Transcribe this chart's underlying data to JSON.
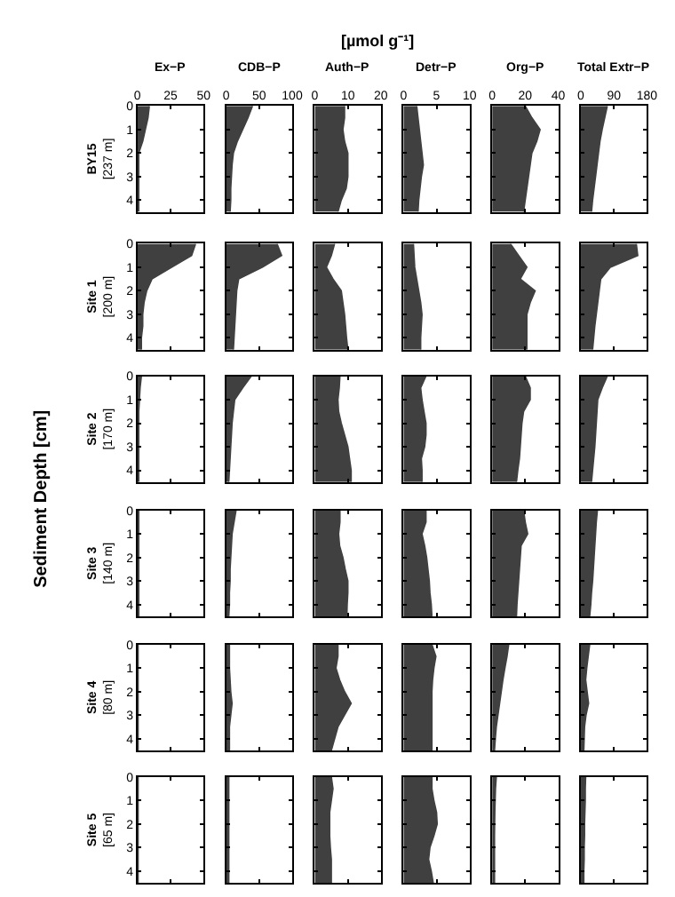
{
  "chart_data": [
    {
      "type": "area",
      "orientation": "horizontal",
      "title": "Ex−P",
      "ylabel": "BY15\n[237 m]",
      "annotations": [
        "[µmol g⁻¹]",
        "Sediment Depth [cm]"
      ],
      "x": [
        0,
        0.5,
        1,
        1.5,
        2,
        2.5,
        3,
        3.5,
        4,
        4.5
      ],
      "values": [
        9,
        8,
        6,
        4,
        1,
        1,
        1,
        1,
        1,
        1
      ],
      "color": "#404040",
      "xlim": [
        0,
        50
      ],
      "xticks": [
        0,
        25,
        50
      ],
      "ylim": [
        4.5,
        0
      ],
      "yticks": [
        0,
        1,
        2,
        3,
        4
      ]
    },
    {
      "type": "area",
      "orientation": "horizontal",
      "title": "CDB−P",
      "tick_labels": "x",
      "x": [
        0,
        0.5,
        1,
        1.5,
        2,
        2.5,
        3,
        3.5,
        4,
        4.5
      ],
      "values": [
        40,
        33,
        25,
        17,
        11,
        9,
        8,
        7,
        7,
        6
      ],
      "color": "#404040",
      "xlim": [
        0,
        100
      ],
      "xticks": [
        0,
        50,
        100
      ],
      "ylim": [
        4.5,
        0
      ],
      "yticks": [
        0,
        1,
        2,
        3,
        4
      ]
    },
    {
      "type": "area",
      "orientation": "horizontal",
      "title": "Auth−P",
      "tick_labels": "x",
      "x": [
        0,
        0.5,
        1,
        1.5,
        2,
        2.5,
        3,
        3.5,
        4,
        4.5
      ],
      "values": [
        9,
        9,
        8.5,
        9,
        10,
        10,
        10,
        9.5,
        8,
        7
      ],
      "color": "#404040",
      "xlim": [
        0,
        20
      ],
      "xticks": [
        0,
        10,
        20
      ],
      "ylim": [
        4.5,
        0
      ],
      "yticks": [
        0,
        1,
        2,
        3,
        4
      ]
    },
    {
      "type": "area",
      "orientation": "horizontal",
      "title": "Detr−P",
      "tick_labels": "x",
      "x": [
        0,
        0.5,
        1,
        1.5,
        2,
        2.5,
        3,
        3.5,
        4,
        4.5
      ],
      "values": [
        2,
        2.2,
        2.4,
        2.6,
        2.8,
        3,
        2.7,
        2.5,
        2.3,
        2.2
      ],
      "color": "#404040",
      "xlim": [
        0,
        10
      ],
      "xticks": [
        0,
        5,
        10
      ],
      "ylim": [
        4.5,
        0
      ],
      "yticks": [
        0,
        1,
        2,
        3,
        4
      ]
    },
    {
      "type": "area",
      "orientation": "horizontal",
      "title": "Org−P",
      "tick_labels": "x",
      "x": [
        0,
        0.5,
        1,
        1.5,
        2,
        2.5,
        3,
        3.5,
        4,
        4.5
      ],
      "values": [
        20,
        24,
        29,
        27,
        24,
        23,
        22,
        21,
        20,
        19
      ],
      "color": "#404040",
      "xlim": [
        0,
        40
      ],
      "xticks": [
        0,
        20,
        40
      ],
      "ylim": [
        4.5,
        0
      ],
      "yticks": [
        0,
        1,
        2,
        3,
        4
      ]
    },
    {
      "type": "area",
      "orientation": "horizontal",
      "title": "Total Extr−P",
      "tick_labels": "x",
      "x": [
        0,
        0.5,
        1,
        1.5,
        2,
        2.5,
        3,
        3.5,
        4,
        4.5
      ],
      "values": [
        72,
        65,
        58,
        52,
        48,
        44,
        40,
        36,
        32,
        29
      ],
      "color": "#404040",
      "xlim": [
        0,
        180
      ],
      "xticks": [
        0,
        90,
        180
      ],
      "ylim": [
        4.5,
        0
      ],
      "yticks": [
        0,
        1,
        2,
        3,
        4
      ]
    },
    {
      "type": "area",
      "orientation": "horizontal",
      "ylabel": "Site 1\n[200 m]",
      "tick_labels": "y",
      "x": [
        0,
        0.5,
        1,
        1.5,
        2,
        2.5,
        3,
        3.5,
        4,
        4.5
      ],
      "values": [
        44,
        41,
        26,
        11,
        7,
        5,
        4,
        4,
        3,
        3
      ],
      "color": "#404040",
      "xlim": [
        0,
        50
      ],
      "xticks": [
        0,
        25,
        50
      ],
      "ylim": [
        4.5,
        0
      ],
      "yticks": [
        0,
        1,
        2,
        3,
        4
      ]
    },
    {
      "type": "area",
      "orientation": "horizontal",
      "tick_labels": false,
      "x": [
        0,
        0.5,
        1,
        1.5,
        2,
        2.5,
        3,
        3.5,
        4,
        4.5
      ],
      "values": [
        77,
        84,
        55,
        19,
        16,
        15,
        14,
        13,
        12,
        11
      ],
      "color": "#404040",
      "xlim": [
        0,
        100
      ],
      "xticks": [
        0,
        50,
        100
      ],
      "ylim": [
        4.5,
        0
      ],
      "yticks": [
        0,
        1,
        2,
        3,
        4
      ]
    },
    {
      "type": "area",
      "orientation": "horizontal",
      "tick_labels": false,
      "x": [
        0,
        0.5,
        1,
        1.5,
        2,
        2.5,
        3,
        3.5,
        4,
        4.5
      ],
      "values": [
        6,
        5,
        3.5,
        5.5,
        8,
        8.5,
        9,
        9.3,
        9.6,
        10
      ],
      "color": "#404040",
      "xlim": [
        0,
        20
      ],
      "xticks": [
        0,
        10,
        20
      ],
      "ylim": [
        4.5,
        0
      ],
      "yticks": [
        0,
        1,
        2,
        3,
        4
      ]
    },
    {
      "type": "area",
      "orientation": "horizontal",
      "tick_labels": false,
      "x": [
        0,
        0.5,
        1,
        1.5,
        2,
        2.5,
        3,
        3.5,
        4,
        4.5
      ],
      "values": [
        1.5,
        1.6,
        1.7,
        2,
        2.3,
        2.6,
        2.8,
        2.7,
        2.6,
        2.6
      ],
      "color": "#404040",
      "xlim": [
        0,
        10
      ],
      "xticks": [
        0,
        5,
        10
      ],
      "ylim": [
        4.5,
        0
      ],
      "yticks": [
        0,
        1,
        2,
        3,
        4
      ]
    },
    {
      "type": "area",
      "orientation": "horizontal",
      "tick_labels": false,
      "x": [
        0,
        0.5,
        1,
        1.5,
        2,
        2.5,
        3,
        3.5,
        4,
        4.5
      ],
      "values": [
        11,
        16,
        21,
        17,
        26,
        23,
        21,
        21,
        21,
        21
      ],
      "color": "#404040",
      "xlim": [
        0,
        40
      ],
      "xticks": [
        0,
        20,
        40
      ],
      "ylim": [
        4.5,
        0
      ],
      "yticks": [
        0,
        1,
        2,
        3,
        4
      ]
    },
    {
      "type": "area",
      "orientation": "horizontal",
      "tick_labels": false,
      "x": [
        0,
        0.5,
        1,
        1.5,
        2,
        2.5,
        3,
        3.5,
        4,
        4.5
      ],
      "values": [
        151,
        155,
        80,
        54,
        50,
        46,
        42,
        38,
        35,
        32
      ],
      "color": "#404040",
      "xlim": [
        0,
        180
      ],
      "xticks": [
        0,
        90,
        180
      ],
      "ylim": [
        4.5,
        0
      ],
      "yticks": [
        0,
        1,
        2,
        3,
        4
      ]
    },
    {
      "type": "area",
      "orientation": "horizontal",
      "ylabel": "Site 2\n[170 m]",
      "tick_labels": "y",
      "x": [
        0,
        0.5,
        1,
        1.5,
        2,
        2.5,
        3,
        3.5,
        4,
        4.5
      ],
      "values": [
        3,
        2,
        1.5,
        1,
        1,
        1,
        1,
        1,
        1,
        1
      ],
      "color": "#404040",
      "xlim": [
        0,
        50
      ],
      "xticks": [
        0,
        25,
        50
      ],
      "ylim": [
        4.5,
        0
      ],
      "yticks": [
        0,
        1,
        2,
        3,
        4
      ]
    },
    {
      "type": "area",
      "orientation": "horizontal",
      "tick_labels": false,
      "x": [
        0,
        0.5,
        1,
        1.5,
        2,
        2.5,
        3,
        3.5,
        4,
        4.5
      ],
      "values": [
        38,
        25,
        13,
        11,
        9,
        8,
        7,
        6,
        5,
        4
      ],
      "color": "#404040",
      "xlim": [
        0,
        100
      ],
      "xticks": [
        0,
        50,
        100
      ],
      "ylim": [
        4.5,
        0
      ],
      "yticks": [
        0,
        1,
        2,
        3,
        4
      ]
    },
    {
      "type": "area",
      "orientation": "horizontal",
      "tick_labels": false,
      "x": [
        0,
        0.5,
        1,
        1.5,
        2,
        2.5,
        3,
        3.5,
        4,
        4.5
      ],
      "values": [
        7.6,
        7.4,
        7,
        7.2,
        8,
        9,
        10,
        10.5,
        11,
        11
      ],
      "color": "#404040",
      "xlim": [
        0,
        20
      ],
      "xticks": [
        0,
        10,
        20
      ],
      "ylim": [
        4.5,
        0
      ],
      "yticks": [
        0,
        1,
        2,
        3,
        4
      ]
    },
    {
      "type": "area",
      "orientation": "horizontal",
      "tick_labels": false,
      "x": [
        0,
        0.5,
        1,
        1.5,
        2,
        2.5,
        3,
        3.5,
        4,
        4.5
      ],
      "values": [
        3.4,
        2.6,
        2.8,
        3.1,
        3.4,
        3.4,
        3.2,
        2.7,
        2.8,
        2.8
      ],
      "color": "#404040",
      "xlim": [
        0,
        10
      ],
      "xticks": [
        0,
        5,
        10
      ],
      "ylim": [
        4.5,
        0
      ],
      "yticks": [
        0,
        1,
        2,
        3,
        4
      ]
    },
    {
      "type": "area",
      "orientation": "horizontal",
      "tick_labels": false,
      "x": [
        0,
        0.5,
        1,
        1.5,
        2,
        2.5,
        3,
        3.5,
        4,
        4.5
      ],
      "values": [
        20,
        23,
        23,
        19,
        18,
        17.5,
        17,
        16.5,
        15.5,
        14.7
      ],
      "color": "#404040",
      "xlim": [
        0,
        40
      ],
      "xticks": [
        0,
        20,
        40
      ],
      "ylim": [
        4.5,
        0
      ],
      "yticks": [
        0,
        1,
        2,
        3,
        4
      ]
    },
    {
      "type": "area",
      "orientation": "horizontal",
      "tick_labels": false,
      "x": [
        0,
        0.5,
        1,
        1.5,
        2,
        2.5,
        3,
        3.5,
        4,
        4.5
      ],
      "values": [
        72,
        58,
        46,
        44,
        42,
        40,
        38,
        35,
        32,
        29
      ],
      "color": "#404040",
      "xlim": [
        0,
        180
      ],
      "xticks": [
        0,
        90,
        180
      ],
      "ylim": [
        4.5,
        0
      ],
      "yticks": [
        0,
        1,
        2,
        3,
        4
      ]
    },
    {
      "type": "area",
      "orientation": "horizontal",
      "ylabel": "Site 3\n[140 m]",
      "tick_labels": "y",
      "x": [
        0,
        0.5,
        1,
        1.5,
        2,
        2.5,
        3,
        3.5,
        4,
        4.5
      ],
      "values": [
        1,
        1,
        1,
        1,
        1,
        1,
        1,
        1,
        1,
        1
      ],
      "color": "#404040",
      "xlim": [
        0,
        50
      ],
      "xticks": [
        0,
        25,
        50
      ],
      "ylim": [
        4.5,
        0
      ],
      "yticks": [
        0,
        1,
        2,
        3,
        4
      ]
    },
    {
      "type": "area",
      "orientation": "horizontal",
      "tick_labels": false,
      "x": [
        0,
        0.5,
        1,
        1.5,
        2,
        2.5,
        3,
        3.5,
        4,
        4.5
      ],
      "values": [
        15,
        12,
        9,
        8,
        7,
        6,
        6,
        5,
        5,
        4
      ],
      "color": "#404040",
      "xlim": [
        0,
        100
      ],
      "xticks": [
        0,
        50,
        100
      ],
      "ylim": [
        4.5,
        0
      ],
      "yticks": [
        0,
        1,
        2,
        3,
        4
      ]
    },
    {
      "type": "area",
      "orientation": "horizontal",
      "tick_labels": false,
      "x": [
        0,
        0.5,
        1,
        1.5,
        2,
        2.5,
        3,
        3.5,
        4,
        4.5
      ],
      "values": [
        7.6,
        7.6,
        7.2,
        7.5,
        8.5,
        9.2,
        10,
        10,
        9.8,
        9.7
      ],
      "color": "#404040",
      "xlim": [
        0,
        20
      ],
      "xticks": [
        0,
        10,
        20
      ],
      "ylim": [
        4.5,
        0
      ],
      "yticks": [
        0,
        1,
        2,
        3,
        4
      ]
    },
    {
      "type": "area",
      "orientation": "horizontal",
      "tick_labels": false,
      "x": [
        0,
        0.5,
        1,
        1.5,
        2,
        2.5,
        3,
        3.5,
        4,
        4.5
      ],
      "values": [
        3.4,
        3.4,
        2.8,
        3.2,
        3.5,
        3.7,
        3.9,
        4,
        4.2,
        4.3
      ],
      "color": "#404040",
      "xlim": [
        0,
        10
      ],
      "xticks": [
        0,
        5,
        10
      ],
      "ylim": [
        4.5,
        0
      ],
      "yticks": [
        0,
        1,
        2,
        3,
        4
      ]
    },
    {
      "type": "area",
      "orientation": "horizontal",
      "tick_labels": false,
      "x": [
        0,
        0.5,
        1,
        1.5,
        2,
        2.5,
        3,
        3.5,
        4,
        4.5
      ],
      "values": [
        19,
        20,
        21.5,
        17.5,
        17,
        16.5,
        16,
        15.5,
        15,
        14.7
      ],
      "color": "#404040",
      "xlim": [
        0,
        40
      ],
      "xticks": [
        0,
        20,
        40
      ],
      "ylim": [
        4.5,
        0
      ],
      "yticks": [
        0,
        1,
        2,
        3,
        4
      ]
    },
    {
      "type": "area",
      "orientation": "horizontal",
      "tick_labels": false,
      "x": [
        0,
        0.5,
        1,
        1.5,
        2,
        2.5,
        3,
        3.5,
        4,
        4.5
      ],
      "values": [
        45,
        42,
        40,
        38,
        36,
        34,
        32,
        29,
        27,
        24
      ],
      "color": "#404040",
      "xlim": [
        0,
        180
      ],
      "xticks": [
        0,
        90,
        180
      ],
      "ylim": [
        4.5,
        0
      ],
      "yticks": [
        0,
        1,
        2,
        3,
        4
      ]
    },
    {
      "type": "area",
      "orientation": "horizontal",
      "ylabel": "Site 4\n[80 m]",
      "tick_labels": "y",
      "x": [
        0,
        0.5,
        1,
        1.5,
        2,
        2.5,
        3,
        3.5,
        4,
        4.5
      ],
      "values": [
        0.5,
        0.5,
        0.5,
        0.5,
        0.5,
        0.5,
        0.5,
        0.5,
        0.5,
        0.5
      ],
      "color": "#404040",
      "xlim": [
        0,
        50
      ],
      "xticks": [
        0,
        25,
        50
      ],
      "ylim": [
        4.5,
        0
      ],
      "yticks": [
        0,
        1,
        2,
        3,
        4
      ]
    },
    {
      "type": "area",
      "orientation": "horizontal",
      "tick_labels": false,
      "x": [
        0,
        0.5,
        1,
        1.5,
        2,
        2.5,
        3,
        3.5,
        4,
        4.5
      ],
      "values": [
        5,
        5,
        5,
        6,
        7,
        9,
        7,
        5,
        5,
        5
      ],
      "color": "#404040",
      "xlim": [
        0,
        100
      ],
      "xticks": [
        0,
        50,
        100
      ],
      "ylim": [
        4.5,
        0
      ],
      "yticks": [
        0,
        1,
        2,
        3,
        4
      ]
    },
    {
      "type": "area",
      "orientation": "horizontal",
      "tick_labels": false,
      "x": [
        0,
        0.5,
        1,
        1.5,
        2,
        2.5,
        3,
        3.5,
        4,
        4.5
      ],
      "values": [
        7,
        7,
        6.4,
        7.5,
        9,
        11,
        9,
        7,
        6,
        5
      ],
      "color": "#404040",
      "xlim": [
        0,
        20
      ],
      "xticks": [
        0,
        10,
        20
      ],
      "ylim": [
        4.5,
        0
      ],
      "yticks": [
        0,
        1,
        2,
        3,
        4
      ]
    },
    {
      "type": "area",
      "orientation": "horizontal",
      "tick_labels": false,
      "x": [
        0,
        0.5,
        1,
        1.5,
        2,
        2.5,
        3,
        3.5,
        4,
        4.5
      ],
      "values": [
        4.3,
        4.9,
        4.6,
        4.4,
        4.3,
        4.3,
        4.3,
        4.3,
        4.3,
        4.3
      ],
      "color": "#404040",
      "xlim": [
        0,
        10
      ],
      "xticks": [
        0,
        5,
        10
      ],
      "ylim": [
        4.5,
        0
      ],
      "yticks": [
        0,
        1,
        2,
        3,
        4
      ]
    },
    {
      "type": "area",
      "orientation": "horizontal",
      "tick_labels": false,
      "x": [
        0,
        0.5,
        1,
        1.5,
        2,
        2.5,
        3,
        3.5,
        4,
        4.5
      ],
      "values": [
        10,
        9,
        7.7,
        6.5,
        5.5,
        4.5,
        3.5,
        2.5,
        1.9,
        1.4
      ],
      "color": "#404040",
      "xlim": [
        0,
        40
      ],
      "xticks": [
        0,
        20,
        40
      ],
      "ylim": [
        4.5,
        0
      ],
      "yticks": [
        0,
        1,
        2,
        3,
        4
      ]
    },
    {
      "type": "area",
      "orientation": "horizontal",
      "tick_labels": false,
      "x": [
        0,
        0.5,
        1,
        1.5,
        2,
        2.5,
        3,
        3.5,
        4,
        4.5
      ],
      "values": [
        24,
        20,
        16,
        13,
        17,
        21,
        14,
        10,
        9,
        8
      ],
      "color": "#404040",
      "xlim": [
        0,
        180
      ],
      "xticks": [
        0,
        90,
        180
      ],
      "ylim": [
        4.5,
        0
      ],
      "yticks": [
        0,
        1,
        2,
        3,
        4
      ]
    },
    {
      "type": "area",
      "orientation": "horizontal",
      "ylabel": "Site 5\n[65 m]",
      "tick_labels": "y",
      "x": [
        0,
        0.5,
        1,
        1.5,
        2,
        2.5,
        3,
        3.5,
        4,
        4.5
      ],
      "values": [
        0.5,
        0.5,
        0.5,
        0.5,
        0.5,
        0.5,
        0.5,
        0.5,
        0.5,
        0.5
      ],
      "color": "#404040",
      "xlim": [
        0,
        50
      ],
      "xticks": [
        0,
        25,
        50
      ],
      "ylim": [
        4.5,
        0
      ],
      "yticks": [
        0,
        1,
        2,
        3,
        4
      ]
    },
    {
      "type": "area",
      "orientation": "horizontal",
      "tick_labels": false,
      "x": [
        0,
        0.5,
        1,
        1.5,
        2,
        2.5,
        3,
        3.5,
        4,
        4.5
      ],
      "values": [
        4,
        4,
        4,
        4,
        4,
        4,
        4,
        4,
        4,
        4
      ],
      "color": "#404040",
      "xlim": [
        0,
        100
      ],
      "xticks": [
        0,
        50,
        100
      ],
      "ylim": [
        4.5,
        0
      ],
      "yticks": [
        0,
        1,
        2,
        3,
        4
      ]
    },
    {
      "type": "area",
      "orientation": "horizontal",
      "tick_labels": false,
      "x": [
        0,
        0.5,
        1,
        1.5,
        2,
        2.5,
        3,
        3.5,
        4,
        4.5
      ],
      "values": [
        5,
        5.5,
        5,
        4.5,
        4.5,
        4.5,
        4.7,
        5,
        5,
        5
      ],
      "color": "#404040",
      "xlim": [
        0,
        20
      ],
      "xticks": [
        0,
        10,
        20
      ],
      "ylim": [
        4.5,
        0
      ],
      "yticks": [
        0,
        1,
        2,
        3,
        4
      ]
    },
    {
      "type": "area",
      "orientation": "horizontal",
      "tick_labels": false,
      "x": [
        0,
        0.5,
        1,
        1.5,
        2,
        2.5,
        3,
        3.5,
        4,
        4.5
      ],
      "values": [
        4.3,
        4.3,
        4.6,
        5,
        5.1,
        4.6,
        4,
        3.8,
        4.2,
        4.5
      ],
      "color": "#404040",
      "xlim": [
        0,
        10
      ],
      "xticks": [
        0,
        5,
        10
      ],
      "ylim": [
        4.5,
        0
      ],
      "yticks": [
        0,
        1,
        2,
        3,
        4
      ]
    },
    {
      "type": "area",
      "orientation": "horizontal",
      "tick_labels": false,
      "x": [
        0,
        0.5,
        1,
        1.5,
        2,
        2.5,
        3,
        3.5,
        4,
        4.5
      ],
      "values": [
        2.5,
        2,
        1.8,
        1.6,
        1.5,
        1.4,
        1.4,
        1.4,
        1.4,
        1.4
      ],
      "color": "#404040",
      "xlim": [
        0,
        40
      ],
      "xticks": [
        0,
        20,
        40
      ],
      "ylim": [
        4.5,
        0
      ],
      "yticks": [
        0,
        1,
        2,
        3,
        4
      ]
    },
    {
      "type": "area",
      "orientation": "horizontal",
      "tick_labels": false,
      "x": [
        0,
        0.5,
        1,
        1.5,
        2,
        2.5,
        3,
        3.5,
        4,
        4.5
      ],
      "values": [
        13,
        12,
        12,
        11,
        10,
        10,
        9,
        9,
        8,
        8
      ],
      "color": "#404040",
      "xlim": [
        0,
        180
      ],
      "xticks": [
        0,
        90,
        180
      ],
      "ylim": [
        4.5,
        0
      ],
      "yticks": [
        0,
        1,
        2,
        3,
        4
      ]
    }
  ]
}
